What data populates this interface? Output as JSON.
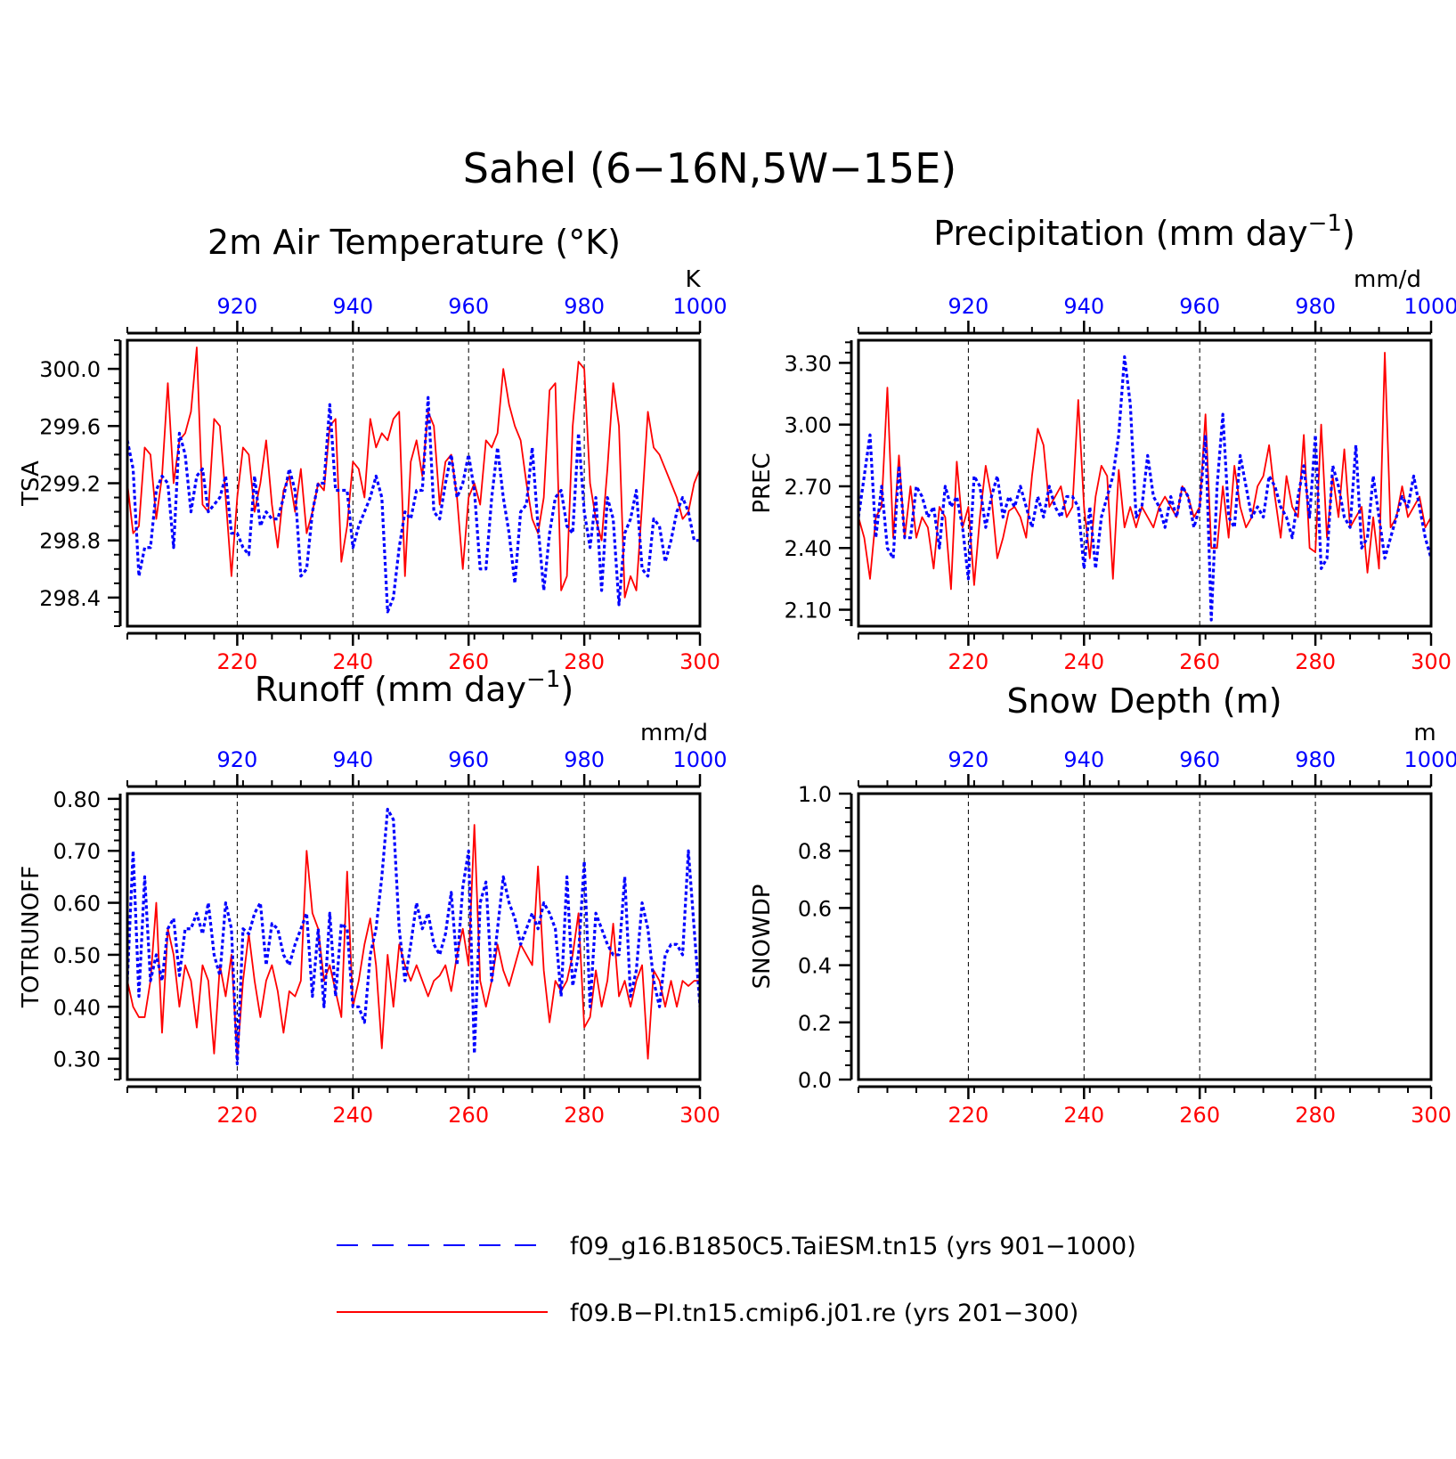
{
  "figure": {
    "title": "Sahel (6−16N,5W−15E)",
    "legend": [
      {
        "label": "f09_g16.B1850C5.TaiESM.tn15 (yrs 901−1000)",
        "color": "#0000ff",
        "dash": "dashed"
      },
      {
        "label": "f09.B−PI.tn15.cmip6.j01.re (yrs 201−300)",
        "color": "#ff0000",
        "dash": "solid"
      }
    ]
  },
  "chart_data": [
    {
      "type": "line",
      "title": "2m Air Temperature (°K)",
      "ylabel": "TSA",
      "units": "K",
      "ylim": [
        298.2,
        300.2
      ],
      "yticks": [
        298.4,
        298.8,
        299.2,
        299.6,
        300.0
      ],
      "ytick_labels": [
        "298.4",
        "298.8",
        "299.2",
        "299.6",
        "300.0"
      ],
      "yminor": 0.1,
      "xlim_bottom": [
        201,
        300
      ],
      "xticks_bottom": [
        220,
        240,
        260,
        280,
        300
      ],
      "xlim_top": [
        901,
        1000
      ],
      "xticks_top": [
        920,
        940,
        960,
        980,
        1000
      ],
      "series": [
        {
          "color": "#ff0000",
          "dash": "solid",
          "x_start": 201,
          "values": [
            299.2,
            298.85,
            298.9,
            299.45,
            299.4,
            298.95,
            299.25,
            299.9,
            299.2,
            299.5,
            299.55,
            299.7,
            300.15,
            299.05,
            299.0,
            299.65,
            299.6,
            299.1,
            298.55,
            299.1,
            299.45,
            299.4,
            299.0,
            299.2,
            299.5,
            299.05,
            298.75,
            299.15,
            299.25,
            299.0,
            299.3,
            298.85,
            299.0,
            299.2,
            299.15,
            299.6,
            299.65,
            298.65,
            298.9,
            299.35,
            299.3,
            299.1,
            299.65,
            299.45,
            299.55,
            299.5,
            299.65,
            299.7,
            298.55,
            299.35,
            299.5,
            299.25,
            299.7,
            299.6,
            299.05,
            299.35,
            299.4,
            299.1,
            298.6,
            299.1,
            299.2,
            299.05,
            299.5,
            299.45,
            299.55,
            300.0,
            299.75,
            299.6,
            299.5,
            299.2,
            298.95,
            298.85,
            299.1,
            299.85,
            299.9,
            298.45,
            298.55,
            299.6,
            300.05,
            300.0,
            299.2,
            298.95,
            298.8,
            299.3,
            299.9,
            299.6,
            298.4,
            298.55,
            298.45,
            299.05,
            299.7,
            299.45,
            299.4,
            299.3,
            299.2,
            299.1,
            298.95,
            299.0,
            299.2,
            299.3
          ]
        },
        {
          "color": "#0000ff",
          "dash": "dashed",
          "x_start": 901,
          "values": [
            299.5,
            299.3,
            298.55,
            298.75,
            298.75,
            299.15,
            299.25,
            299.2,
            298.75,
            299.55,
            299.4,
            299.0,
            299.25,
            299.3,
            299.0,
            299.05,
            299.1,
            299.25,
            298.85,
            298.85,
            298.75,
            298.7,
            299.25,
            298.9,
            299.0,
            298.95,
            298.95,
            299.1,
            299.3,
            299.15,
            298.55,
            298.6,
            299.0,
            299.2,
            299.2,
            299.75,
            299.15,
            299.15,
            299.15,
            298.75,
            298.9,
            299.0,
            299.1,
            299.25,
            299.1,
            298.3,
            298.4,
            298.75,
            299.0,
            298.95,
            299.15,
            299.15,
            299.8,
            299.0,
            298.95,
            299.2,
            299.4,
            299.1,
            299.2,
            299.4,
            299.15,
            298.6,
            298.6,
            299.1,
            299.45,
            299.1,
            298.85,
            298.5,
            299.0,
            299.05,
            299.45,
            298.9,
            298.45,
            298.85,
            299.1,
            299.15,
            298.9,
            298.85,
            299.55,
            299.0,
            298.75,
            299.1,
            298.45,
            299.1,
            298.95,
            298.35,
            298.85,
            298.95,
            299.15,
            298.6,
            298.55,
            298.95,
            298.9,
            298.65,
            298.8,
            299.0,
            299.1,
            299.0,
            298.8,
            298.8
          ]
        }
      ]
    },
    {
      "type": "line",
      "title": "Precipitation (mm day⁻¹)",
      "ylabel": "PREC",
      "units": "mm/d",
      "ylim": [
        2.02,
        3.41
      ],
      "yticks": [
        2.1,
        2.4,
        2.7,
        3.0,
        3.3
      ],
      "ytick_labels": [
        "2.10",
        "2.40",
        "2.70",
        "3.00",
        "3.30"
      ],
      "yminor": 0.05,
      "xlim_bottom": [
        201,
        300
      ],
      "xticks_bottom": [
        220,
        240,
        260,
        280,
        300
      ],
      "xlim_top": [
        901,
        1000
      ],
      "xticks_top": [
        920,
        940,
        960,
        980,
        1000
      ],
      "series": [
        {
          "color": "#ff0000",
          "dash": "solid",
          "x_start": 201,
          "values": [
            2.55,
            2.45,
            2.25,
            2.55,
            2.6,
            3.18,
            2.45,
            2.85,
            2.45,
            2.7,
            2.45,
            2.55,
            2.5,
            2.3,
            2.6,
            2.55,
            2.2,
            2.82,
            2.5,
            2.6,
            2.22,
            2.55,
            2.8,
            2.65,
            2.35,
            2.45,
            2.58,
            2.6,
            2.55,
            2.45,
            2.75,
            2.98,
            2.9,
            2.6,
            2.65,
            2.7,
            2.55,
            2.6,
            3.12,
            2.6,
            2.35,
            2.65,
            2.8,
            2.75,
            2.25,
            2.78,
            2.5,
            2.6,
            2.5,
            2.6,
            2.55,
            2.5,
            2.6,
            2.65,
            2.6,
            2.55,
            2.7,
            2.65,
            2.55,
            2.6,
            3.05,
            2.4,
            2.4,
            2.7,
            2.45,
            2.8,
            2.6,
            2.5,
            2.55,
            2.7,
            2.75,
            2.9,
            2.65,
            2.45,
            2.75,
            2.6,
            2.55,
            2.95,
            2.4,
            2.38,
            3.0,
            2.45,
            2.75,
            2.55,
            2.88,
            2.5,
            2.55,
            2.6,
            2.28,
            2.55,
            2.3,
            3.35,
            2.5,
            2.55,
            2.7,
            2.55,
            2.6,
            2.65,
            2.5,
            2.55
          ]
        },
        {
          "color": "#0000ff",
          "dash": "dashed",
          "x_start": 901,
          "values": [
            2.55,
            2.75,
            2.95,
            2.45,
            2.7,
            2.4,
            2.35,
            2.8,
            2.45,
            2.45,
            2.7,
            2.65,
            2.55,
            2.6,
            2.4,
            2.7,
            2.6,
            2.65,
            2.5,
            2.25,
            2.75,
            2.7,
            2.5,
            2.65,
            2.75,
            2.55,
            2.65,
            2.6,
            2.7,
            2.6,
            2.5,
            2.65,
            2.55,
            2.7,
            2.6,
            2.55,
            2.65,
            2.65,
            2.6,
            2.3,
            2.6,
            2.3,
            2.55,
            2.65,
            2.75,
            2.95,
            3.33,
            3.1,
            2.55,
            2.6,
            2.85,
            2.65,
            2.6,
            2.5,
            2.65,
            2.55,
            2.7,
            2.65,
            2.5,
            2.6,
            2.95,
            2.05,
            2.7,
            3.05,
            2.55,
            2.5,
            2.85,
            2.7,
            2.55,
            2.6,
            2.55,
            2.75,
            2.7,
            2.6,
            2.55,
            2.45,
            2.65,
            2.8,
            2.55,
            2.95,
            2.3,
            2.35,
            2.8,
            2.7,
            2.55,
            2.5,
            2.9,
            2.4,
            2.45,
            2.75,
            2.55,
            2.35,
            2.45,
            2.55,
            2.65,
            2.6,
            2.75,
            2.6,
            2.45,
            2.35
          ]
        }
      ]
    },
    {
      "type": "line",
      "title": "Runoff (mm day⁻¹)",
      "ylabel": "TOTRUNOFF",
      "units": "mm/d",
      "ylim": [
        0.26,
        0.81
      ],
      "yticks": [
        0.3,
        0.4,
        0.5,
        0.6,
        0.7,
        0.8
      ],
      "ytick_labels": [
        "0.30",
        "0.40",
        "0.50",
        "0.60",
        "0.70",
        "0.80"
      ],
      "yminor": 0.02,
      "xlim_bottom": [
        201,
        300
      ],
      "xticks_bottom": [
        220,
        240,
        260,
        280,
        300
      ],
      "xlim_top": [
        901,
        1000
      ],
      "xticks_top": [
        920,
        940,
        960,
        980,
        1000
      ],
      "series": [
        {
          "color": "#ff0000",
          "dash": "solid",
          "x_start": 201,
          "values": [
            0.45,
            0.4,
            0.38,
            0.38,
            0.45,
            0.6,
            0.35,
            0.55,
            0.5,
            0.4,
            0.48,
            0.45,
            0.36,
            0.48,
            0.45,
            0.31,
            0.48,
            0.42,
            0.5,
            0.3,
            0.45,
            0.54,
            0.45,
            0.38,
            0.45,
            0.48,
            0.43,
            0.35,
            0.43,
            0.42,
            0.45,
            0.7,
            0.58,
            0.55,
            0.45,
            0.48,
            0.43,
            0.38,
            0.66,
            0.4,
            0.45,
            0.52,
            0.57,
            0.48,
            0.32,
            0.5,
            0.4,
            0.52,
            0.48,
            0.45,
            0.48,
            0.45,
            0.42,
            0.45,
            0.46,
            0.48,
            0.43,
            0.5,
            0.55,
            0.48,
            0.75,
            0.45,
            0.4,
            0.45,
            0.52,
            0.47,
            0.44,
            0.48,
            0.52,
            0.5,
            0.48,
            0.67,
            0.47,
            0.37,
            0.45,
            0.43,
            0.45,
            0.5,
            0.58,
            0.36,
            0.38,
            0.47,
            0.4,
            0.45,
            0.56,
            0.42,
            0.45,
            0.4,
            0.45,
            0.48,
            0.3,
            0.47,
            0.45,
            0.4,
            0.45,
            0.4,
            0.45,
            0.44,
            0.45,
            0.45
          ]
        },
        {
          "color": "#0000ff",
          "dash": "dashed",
          "x_start": 901,
          "values": [
            0.45,
            0.7,
            0.42,
            0.65,
            0.45,
            0.5,
            0.45,
            0.55,
            0.57,
            0.46,
            0.55,
            0.55,
            0.58,
            0.54,
            0.6,
            0.5,
            0.46,
            0.6,
            0.55,
            0.29,
            0.55,
            0.54,
            0.58,
            0.6,
            0.48,
            0.56,
            0.55,
            0.5,
            0.48,
            0.52,
            0.55,
            0.58,
            0.42,
            0.55,
            0.4,
            0.58,
            0.42,
            0.56,
            0.55,
            0.4,
            0.4,
            0.37,
            0.5,
            0.55,
            0.65,
            0.78,
            0.76,
            0.55,
            0.45,
            0.52,
            0.6,
            0.55,
            0.58,
            0.52,
            0.5,
            0.54,
            0.62,
            0.48,
            0.63,
            0.7,
            0.31,
            0.6,
            0.64,
            0.45,
            0.55,
            0.65,
            0.6,
            0.57,
            0.52,
            0.55,
            0.58,
            0.55,
            0.6,
            0.58,
            0.55,
            0.42,
            0.65,
            0.44,
            0.5,
            0.68,
            0.4,
            0.58,
            0.55,
            0.52,
            0.5,
            0.5,
            0.65,
            0.42,
            0.47,
            0.6,
            0.55,
            0.45,
            0.4,
            0.5,
            0.52,
            0.52,
            0.5,
            0.7,
            0.55,
            0.4
          ]
        }
      ]
    },
    {
      "type": "line",
      "title": "Snow Depth (m)",
      "ylabel": "SNOWDP",
      "units": "m",
      "ylim": [
        0.0,
        1.0
      ],
      "yticks": [
        0.0,
        0.2,
        0.4,
        0.6,
        0.8,
        1.0
      ],
      "ytick_labels": [
        "0.0",
        "0.2",
        "0.4",
        "0.6",
        "0.8",
        "1.0"
      ],
      "yminor": 0.05,
      "xlim_bottom": [
        201,
        300
      ],
      "xticks_bottom": [
        220,
        240,
        260,
        280,
        300
      ],
      "xlim_top": [
        901,
        1000
      ],
      "xticks_top": [
        920,
        940,
        960,
        980,
        1000
      ],
      "series": []
    }
  ]
}
